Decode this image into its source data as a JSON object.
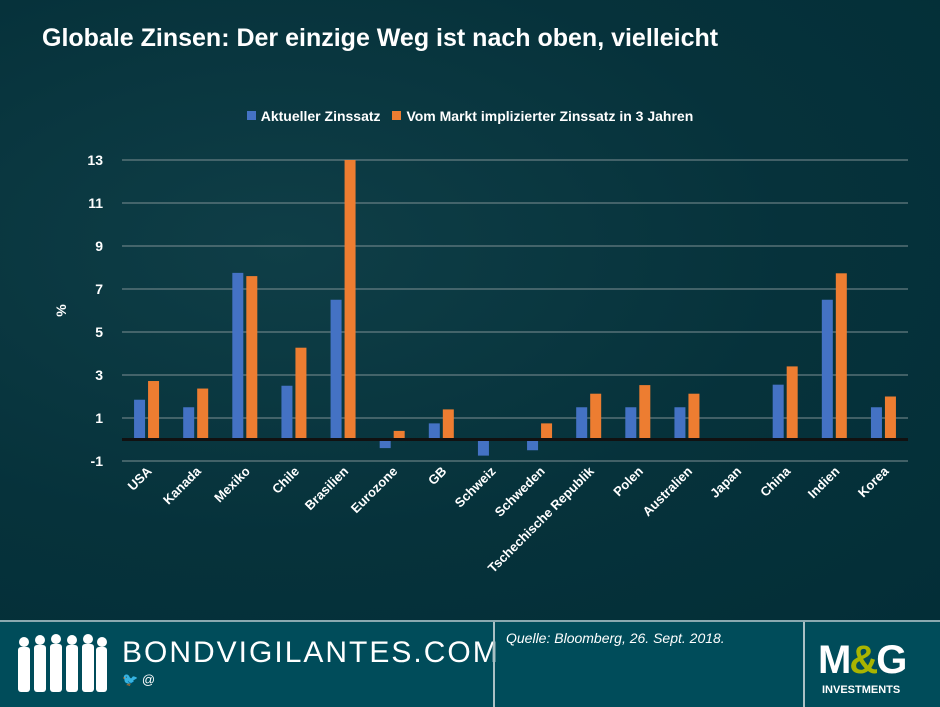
{
  "title": "Globale Zinsen: Der einzige Weg ist nach oben, vielleicht",
  "chart_data": {
    "type": "bar",
    "title": "Globale Zinsen: Der einzige Weg ist nach oben, vielleicht",
    "xlabel": "",
    "ylabel": "%",
    "ylim": [
      -1,
      13
    ],
    "yticks": [
      -1,
      1,
      3,
      5,
      7,
      9,
      11,
      13
    ],
    "grid": true,
    "legend": "top",
    "categories": [
      "USA",
      "Kanada",
      "Mexiko",
      "Chile",
      "Brasilien",
      "Eurozone",
      "GB",
      "Schweiz",
      "Schweden",
      "Tschechische Republik",
      "Polen",
      "Australien",
      "Japan",
      "China",
      "Indien",
      "Korea"
    ],
    "series": [
      {
        "name": "Aktueller Zinssatz",
        "color": "#4472c4",
        "values": [
          1.85,
          1.5,
          7.75,
          2.5,
          6.5,
          -0.4,
          0.75,
          -0.75,
          -0.5,
          1.5,
          1.5,
          1.5,
          0,
          2.55,
          6.5,
          1.5
        ]
      },
      {
        "name": "Vom Markt implizierter Zinssatz in 3 Jahren",
        "color": "#ed7d31",
        "values": [
          2.72,
          2.37,
          7.6,
          4.27,
          13.0,
          0.4,
          1.4,
          0,
          0.75,
          2.13,
          2.53,
          2.13,
          0,
          3.4,
          7.73,
          2.0
        ]
      }
    ]
  },
  "footer": {
    "site": "BONDVIGILANTES.COM",
    "social": "@",
    "source": "Quelle: Bloomberg, 26. Sept. 2018.",
    "logo": {
      "m": "M",
      "amp": "&",
      "g": "G",
      "sub": "INVESTMENTS"
    }
  }
}
